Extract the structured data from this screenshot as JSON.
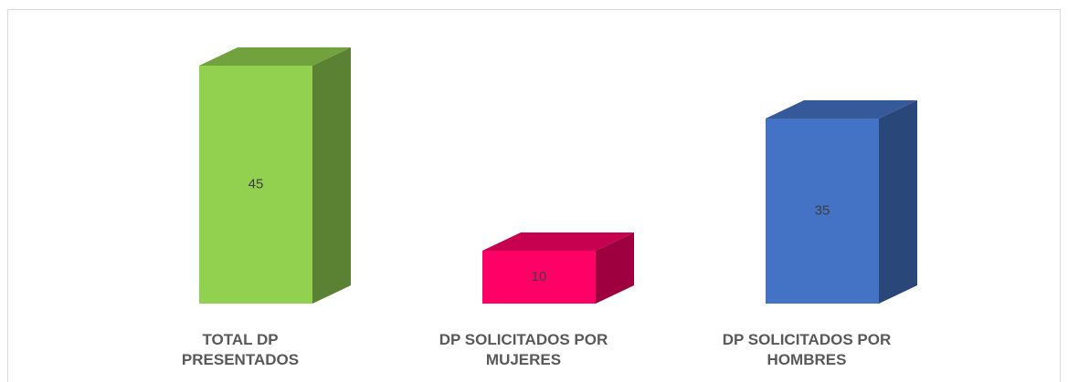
{
  "chart_data": {
    "type": "bar3d",
    "categories": [
      "TOTAL DP\nPRESENTADOS",
      "DP SOLICITADOS POR\nMUJERES",
      "DP SOLICITADOS POR\nHOMBRES"
    ],
    "values": [
      45,
      10,
      35
    ],
    "colors": [
      "#92d050",
      "#ff0066",
      "#4472c4"
    ]
  }
}
